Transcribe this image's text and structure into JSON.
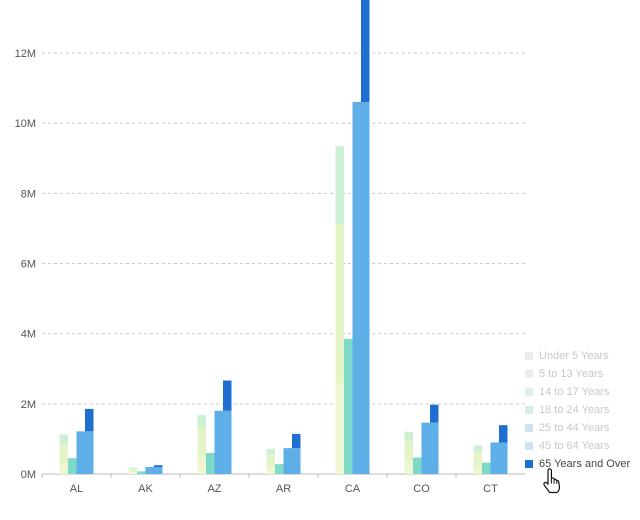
{
  "chart_data": {
    "type": "bar",
    "categories": [
      "AL",
      "AK",
      "AZ",
      "AR",
      "CA",
      "CO",
      "CT"
    ],
    "y_ticks": [
      "0M",
      "2M",
      "4M",
      "6M",
      "8M",
      "10M",
      "12M"
    ],
    "ylim": [
      0,
      13000000
    ],
    "grid": "horizontal dashed",
    "legend_position": "bottom-right",
    "groups": [
      {
        "bars": [
          {
            "name": "Under 5 Years",
            "values": [
              310000,
              52000,
              468000,
              195000,
              2595000,
              358000,
              212000
            ]
          },
          {
            "name": "5 to 13 Years",
            "values": [
              553000,
              86000,
              859000,
              357000,
              4539000,
              587000,
              403000
            ]
          },
          {
            "name": "14 to 17 Years",
            "values": [
              260000,
              42000,
              358000,
              163000,
              2215000,
              262000,
              199000
            ]
          }
        ]
      },
      {
        "bars": [
          {
            "name": "18 to 24 Years",
            "values": [
              450000,
              75000,
              601000,
              279000,
              3853000,
              467000,
              325000
            ]
          }
        ]
      },
      {
        "bars": [
          {
            "name": "25 to 44 Years",
            "values": [
              1216000,
              199000,
              1804000,
              737000,
              10605000,
              1464000,
              898000
            ]
          }
        ]
      },
      {
        "bars": [
          {
            "name": "45 to 64 Years",
            "values": [
              1216000,
              199000,
              1804000,
              737000,
              10605000,
              1464000,
              898000
            ]
          },
          {
            "name": "65 Years and Over",
            "values": [
              640000,
              51000,
              862000,
              407000,
              4115000,
              512000,
              494000
            ]
          }
        ]
      }
    ],
    "series": [
      {
        "name": "Under 5 Years",
        "color": "#eef7d2"
      },
      {
        "name": "5 to 13 Years",
        "color": "#e3f4c6"
      },
      {
        "name": "14 to 17 Years",
        "color": "#ccf0d4"
      },
      {
        "name": "18 to 24 Years",
        "color": "#7fd9c8"
      },
      {
        "name": "25 to 44 Years",
        "color": "#5eaee8"
      },
      {
        "name": "45 to 64 Years",
        "color": "#5eaee8"
      },
      {
        "name": "65 Years and Over",
        "color": "#1f6fd0"
      }
    ],
    "legend": {
      "items": [
        {
          "label": "Under 5 Years",
          "color": "#ececec",
          "active": false
        },
        {
          "label": "5 to 13 Years",
          "color": "#ececec",
          "active": false
        },
        {
          "label": "14 to 17 Years",
          "color": "#e2f1e6",
          "active": false
        },
        {
          "label": "18 to 24 Years",
          "color": "#d6ede9",
          "active": false
        },
        {
          "label": "25 to 44 Years",
          "color": "#cfe2f0",
          "active": false
        },
        {
          "label": "45 to 64 Years",
          "color": "#cfe2f0",
          "active": false
        },
        {
          "label": "65 Years and Over",
          "color": "#1f6fd0",
          "active": true
        }
      ]
    }
  },
  "cursor": {
    "icon": "hand-pointer-icon"
  },
  "colors": {
    "grid": "#c9c9c9",
    "axis_text": "#555555",
    "axis_line": "#bbbbbb"
  }
}
